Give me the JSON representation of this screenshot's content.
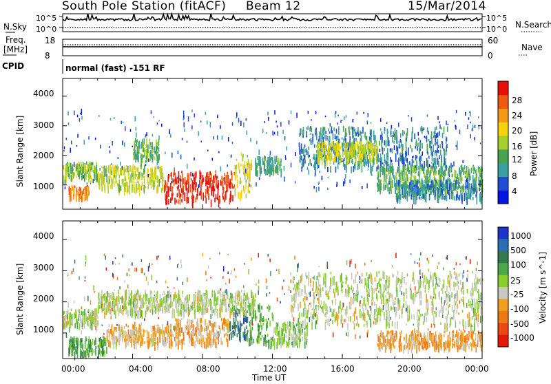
{
  "header": {
    "station": "South Pole Station (fitACF)",
    "beam": "Beam 12",
    "date": "15/Mar/2014"
  },
  "strips": {
    "nsky_label": "N.Sky",
    "nsky_ticks": [
      "10^5",
      "10^0"
    ],
    "nsearch_label": "N.Search",
    "nsearch_ticks": [
      "10^5",
      "10^0"
    ],
    "freq_label_line1": "Freq.",
    "freq_label_line2": "[MHz]",
    "freq_ticks": [
      "18",
      "8"
    ],
    "nave_label": "Nave",
    "nave_ticks": [
      "60",
      "0"
    ],
    "cpid_label": "CPID",
    "cpid_text": "normal (fast) -151 RF"
  },
  "chart_data": [
    {
      "type": "heatmap",
      "title": "",
      "ylabel": "Slant Range [km]",
      "xlabel": "",
      "x_range_hours": [
        0,
        24
      ],
      "ylim": [
        180,
        4600
      ],
      "yticks": [
        "1000",
        "2000",
        "3000",
        "4000"
      ],
      "colorbar": {
        "label": "Power [dB]",
        "ticks": [
          "4",
          "8",
          "12",
          "16",
          "20",
          "24",
          "28"
        ],
        "colors": [
          "#0016e0",
          "#1f4fd1",
          "#3aa0a0",
          "#49a34f",
          "#a6cf2e",
          "#f6d20a",
          "#f59a18",
          "#ee5a10",
          "#e80f08"
        ],
        "range": [
          0,
          30
        ]
      },
      "bands": [
        {
          "t": [
            0.0,
            2.0
          ],
          "range_km": [
            1300,
            1800
          ],
          "value_db": 14
        },
        {
          "t": [
            0.3,
            1.5
          ],
          "range_km": [
            600,
            1000
          ],
          "value_db": 22
        },
        {
          "t": [
            2.0,
            5.8
          ],
          "range_km": [
            900,
            1700
          ],
          "value_db": 16
        },
        {
          "t": [
            4.0,
            5.5
          ],
          "range_km": [
            1900,
            2600
          ],
          "value_db": 12
        },
        {
          "t": [
            5.8,
            9.8
          ],
          "range_km": [
            500,
            1500
          ],
          "value_db": 28
        },
        {
          "t": [
            9.8,
            10.8
          ],
          "range_km": [
            700,
            2100
          ],
          "value_db": 18
        },
        {
          "t": [
            11.0,
            12.5
          ],
          "range_km": [
            1500,
            2000
          ],
          "value_db": 10
        },
        {
          "t": [
            13.5,
            22.0
          ],
          "range_km": [
            1600,
            3000
          ],
          "value_db": 8
        },
        {
          "t": [
            14.5,
            18.0
          ],
          "range_km": [
            1900,
            2500
          ],
          "value_db": 16
        },
        {
          "t": [
            18.0,
            24.0
          ],
          "range_km": [
            900,
            1700
          ],
          "value_db": 12
        },
        {
          "t": [
            19.0,
            24.0
          ],
          "range_km": [
            600,
            1200
          ],
          "value_db": 8
        }
      ]
    },
    {
      "type": "heatmap",
      "title": "",
      "ylabel": "Slant Range [km]",
      "xlabel": "Time UT",
      "x_range_hours": [
        0,
        24
      ],
      "xticks": [
        "00:00",
        "04:00",
        "08:00",
        "12:00",
        "16:00",
        "20:00",
        "00:00"
      ],
      "ylim": [
        180,
        4600
      ],
      "yticks": [
        "1000",
        "2000",
        "3000",
        "4000"
      ],
      "colorbar": {
        "label": "Velocity [m s^-1]",
        "ticks": [
          "1000",
          "500",
          "100",
          "25",
          "-25",
          "-100",
          "-500",
          "-1000"
        ],
        "colors": [
          "#1b35c8",
          "#2a6eb0",
          "#357a4f",
          "#4aa84a",
          "#8ccd2e",
          "#c8c8c0",
          "#f0a020",
          "#ee7a16",
          "#e84a12",
          "#e41808"
        ],
        "range": [
          -1000,
          1000
        ]
      },
      "bands": [
        {
          "t": [
            0.0,
            2.0
          ],
          "range_km": [
            1300,
            1800
          ],
          "value": 0
        },
        {
          "t": [
            0.3,
            2.5
          ],
          "range_km": [
            400,
            900
          ],
          "value": 300
        },
        {
          "t": [
            2.5,
            6.0
          ],
          "range_km": [
            700,
            1300
          ],
          "value": -200
        },
        {
          "t": [
            6.0,
            9.5
          ],
          "range_km": [
            700,
            1500
          ],
          "value": -300
        },
        {
          "t": [
            9.5,
            10.5
          ],
          "range_km": [
            900,
            1800
          ],
          "value": 600
        },
        {
          "t": [
            10.5,
            12.0
          ],
          "range_km": [
            700,
            2000
          ],
          "value": 300
        },
        {
          "t": [
            12.0,
            14.0
          ],
          "range_km": [
            700,
            1400
          ],
          "value": 100
        },
        {
          "t": [
            2.0,
            11.0
          ],
          "range_km": [
            1700,
            2400
          ],
          "value": 0
        },
        {
          "t": [
            13.0,
            24.0
          ],
          "range_km": [
            1300,
            3000
          ],
          "value": 0
        },
        {
          "t": [
            18.0,
            24.0
          ],
          "range_km": [
            600,
            1100
          ],
          "value": -300
        }
      ]
    }
  ]
}
